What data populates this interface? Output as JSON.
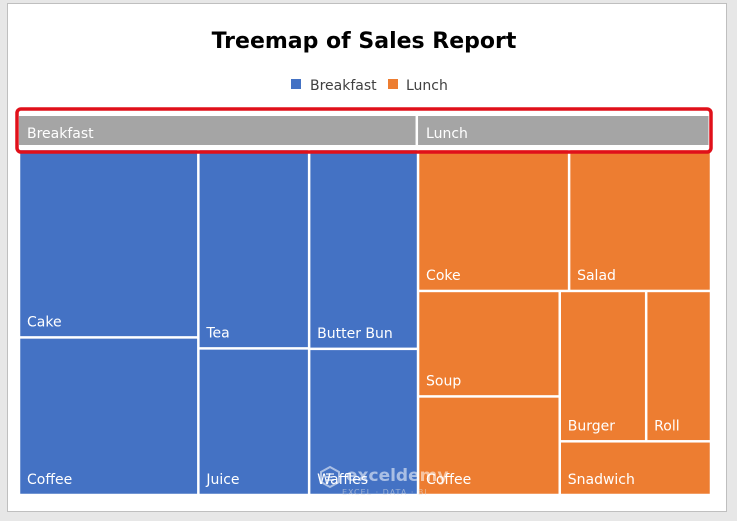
{
  "chart_data": {
    "type": "treemap",
    "title": "Treemap of Sales Report",
    "legend_position": "top",
    "groups": [
      {
        "name": "Breakfast",
        "color": "#4472c4",
        "items": [
          {
            "label": "Cake",
            "value": 104
          },
          {
            "label": "Coffee",
            "value": 87
          },
          {
            "label": "Tea",
            "value": 68
          },
          {
            "label": "Juice",
            "value": 50
          },
          {
            "label": "Butter Bun",
            "value": 67
          },
          {
            "label": "Waffles",
            "value": 49
          }
        ]
      },
      {
        "name": "Lunch",
        "color": "#ed7d31",
        "items": [
          {
            "label": "Coke",
            "value": 66
          },
          {
            "label": "Salad",
            "value": 62
          },
          {
            "label": "Soup",
            "value": 46
          },
          {
            "label": "Coffee",
            "value": 43
          },
          {
            "label": "Burger",
            "value": 40
          },
          {
            "label": "Roll",
            "value": 30
          },
          {
            "label": "Snadwich",
            "value": 25
          }
        ]
      }
    ],
    "header_color": "#a5a5a5",
    "highlight_color": "#e0101a"
  },
  "watermark": {
    "brand": "exceldemy",
    "tagline": "EXCEL · DATA · BI"
  }
}
